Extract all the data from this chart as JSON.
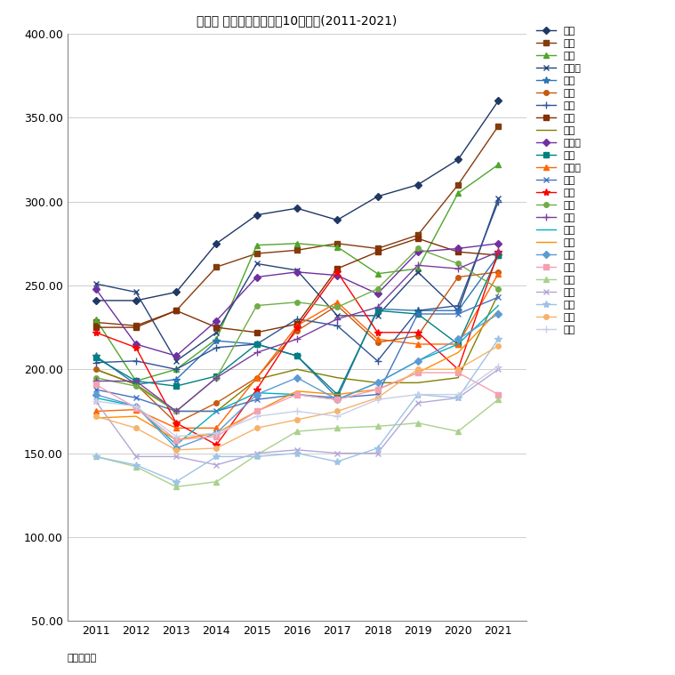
{
  "title": "江東区 マンション坪単価10年変遷(2011-2021)",
  "xlabel_unit": "単位：万円",
  "years": [
    2011,
    2012,
    2013,
    2014,
    2015,
    2016,
    2017,
    2018,
    2019,
    2020,
    2021
  ],
  "ylim": [
    50.0,
    400.0
  ],
  "yticks": [
    50.0,
    100.0,
    150.0,
    200.0,
    250.0,
    300.0,
    350.0,
    400.0
  ],
  "series": [
    {
      "name": "豊洲",
      "color": "#1F3864",
      "marker": "D",
      "markersize": 4,
      "values": [
        241,
        241,
        246,
        275,
        292,
        296,
        289,
        303,
        310,
        325,
        360
      ]
    },
    {
      "name": "有明",
      "color": "#843C0C",
      "marker": "s",
      "markersize": 4,
      "values": [
        228,
        226,
        235,
        261,
        269,
        271,
        275,
        272,
        280,
        310,
        345
      ]
    },
    {
      "name": "白河",
      "color": "#4EA72A",
      "marker": "^",
      "markersize": 4,
      "values": [
        230,
        193,
        200,
        218,
        274,
        275,
        273,
        257,
        260,
        305,
        322
      ]
    },
    {
      "name": "新大橋",
      "color": "#264478",
      "marker": "x",
      "markersize": 5,
      "values": [
        251,
        246,
        205,
        222,
        263,
        259,
        232,
        232,
        258,
        235,
        302
      ]
    },
    {
      "name": "東雲",
      "color": "#2E75B6",
      "marker": "*",
      "markersize": 6,
      "values": [
        208,
        191,
        194,
        217,
        215,
        208,
        183,
        236,
        235,
        235,
        268
      ]
    },
    {
      "name": "平野",
      "color": "#C55A11",
      "marker": "o",
      "markersize": 4,
      "values": [
        200,
        191,
        168,
        180,
        195,
        223,
        238,
        216,
        220,
        255,
        258
      ]
    },
    {
      "name": "森下",
      "color": "#2F5597",
      "marker": "+",
      "markersize": 6,
      "values": [
        204,
        205,
        200,
        213,
        215,
        230,
        226,
        205,
        235,
        238,
        300
      ]
    },
    {
      "name": "木場",
      "color": "#833002",
      "marker": "s",
      "markersize": 4,
      "values": [
        225,
        225,
        235,
        225,
        222,
        227,
        260,
        270,
        278,
        270,
        268
      ]
    },
    {
      "name": "扇橋",
      "color": "#808000",
      "marker": "None",
      "markersize": 4,
      "values": [
        200,
        191,
        175,
        175,
        194,
        200,
        195,
        192,
        192,
        195,
        245
      ]
    },
    {
      "name": "古石場",
      "color": "#7030A0",
      "marker": "D",
      "markersize": 4,
      "values": [
        248,
        215,
        208,
        229,
        255,
        258,
        256,
        245,
        270,
        272,
        275
      ]
    },
    {
      "name": "新砂",
      "color": "#008080",
      "marker": "s",
      "markersize": 4,
      "values": [
        207,
        193,
        190,
        196,
        215,
        208,
        185,
        235,
        233,
        215,
        268
      ]
    },
    {
      "name": "越中島",
      "color": "#FF6600",
      "marker": "^",
      "markersize": 4,
      "values": [
        175,
        176,
        165,
        165,
        195,
        226,
        240,
        218,
        215,
        215,
        257
      ]
    },
    {
      "name": "猿江",
      "color": "#4472C4",
      "marker": "x",
      "markersize": 5,
      "values": [
        188,
        183,
        175,
        175,
        182,
        185,
        183,
        185,
        233,
        233,
        243
      ]
    },
    {
      "name": "富岡",
      "color": "#FF0000",
      "marker": "*",
      "markersize": 6,
      "values": [
        222,
        213,
        168,
        155,
        188,
        225,
        258,
        222,
        222,
        200,
        270
      ]
    },
    {
      "name": "東陽",
      "color": "#70AD47",
      "marker": "o",
      "markersize": 4,
      "values": [
        195,
        190,
        175,
        195,
        238,
        240,
        237,
        248,
        272,
        263,
        248
      ]
    },
    {
      "name": "深川",
      "color": "#7B3F9E",
      "marker": "+",
      "markersize": 6,
      "values": [
        193,
        193,
        175,
        195,
        210,
        218,
        230,
        237,
        262,
        260,
        270
      ]
    },
    {
      "name": "塩浜",
      "color": "#00B0C0",
      "marker": "None",
      "markersize": 4,
      "values": [
        183,
        178,
        155,
        175,
        186,
        185,
        182,
        192,
        205,
        215,
        238
      ]
    },
    {
      "name": "潮見",
      "color": "#FF8C00",
      "marker": "None",
      "markersize": 4,
      "values": [
        171,
        172,
        158,
        162,
        175,
        187,
        185,
        188,
        198,
        210,
        235
      ]
    },
    {
      "name": "永代",
      "color": "#5B9BD5",
      "marker": "D",
      "markersize": 4,
      "values": [
        185,
        178,
        153,
        162,
        185,
        195,
        182,
        192,
        205,
        218,
        233
      ]
    },
    {
      "name": "亀戸",
      "color": "#F4A0B0",
      "marker": "s",
      "markersize": 4,
      "values": [
        191,
        177,
        158,
        160,
        175,
        185,
        182,
        188,
        198,
        198,
        185
      ]
    },
    {
      "name": "大島",
      "color": "#A9D18E",
      "marker": "^",
      "markersize": 4,
      "values": [
        148,
        142,
        130,
        133,
        149,
        163,
        165,
        166,
        168,
        163,
        182
      ]
    },
    {
      "name": "辰巳",
      "color": "#B4A7D6",
      "marker": "x",
      "markersize": 5,
      "values": [
        181,
        148,
        148,
        143,
        150,
        152,
        150,
        150,
        180,
        183,
        200
      ]
    },
    {
      "name": "千石",
      "color": "#9DC3E6",
      "marker": "*",
      "markersize": 6,
      "values": [
        148,
        143,
        133,
        148,
        148,
        150,
        145,
        153,
        185,
        183,
        218
      ]
    },
    {
      "name": "枝川",
      "color": "#F6B26B",
      "marker": "o",
      "markersize": 4,
      "values": [
        172,
        165,
        152,
        153,
        165,
        170,
        175,
        183,
        200,
        200,
        214
      ]
    },
    {
      "name": "南砂",
      "color": "#C8D0E8",
      "marker": "+",
      "markersize": 6,
      "values": [
        181,
        178,
        160,
        162,
        172,
        175,
        172,
        182,
        185,
        185,
        202
      ]
    }
  ]
}
